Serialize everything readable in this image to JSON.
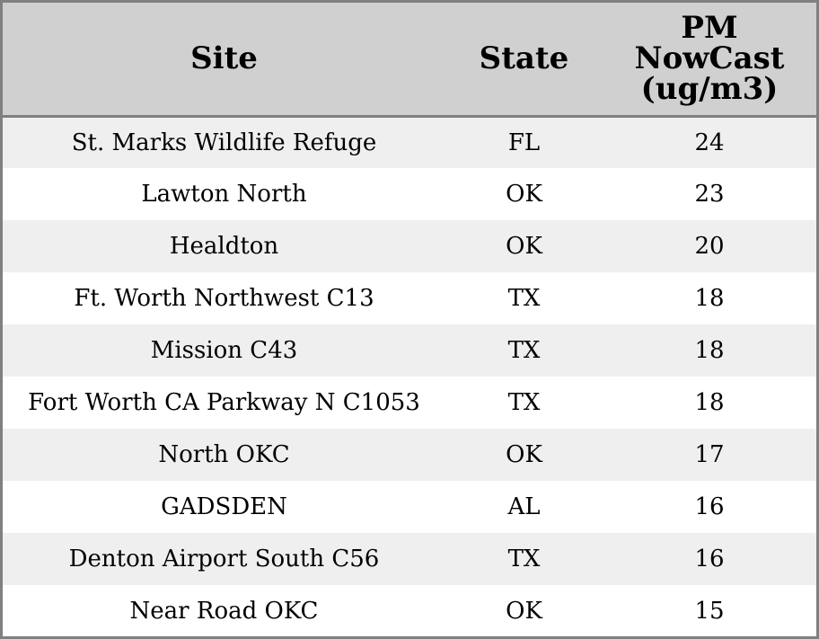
{
  "chart_data": {
    "type": "table",
    "columns": [
      "Site",
      "State",
      "PM NowCast (ug/m3)"
    ],
    "header_lines": {
      "site": [
        "Site"
      ],
      "state": [
        "State"
      ],
      "pm": [
        "PM",
        "NowCast",
        "(ug/m3)"
      ]
    },
    "rows": [
      {
        "site": "St. Marks Wildlife Refuge",
        "state": "FL",
        "pm": "24"
      },
      {
        "site": "Lawton North",
        "state": "OK",
        "pm": "23"
      },
      {
        "site": "Healdton",
        "state": "OK",
        "pm": "20"
      },
      {
        "site": "Ft. Worth Northwest C13",
        "state": "TX",
        "pm": "18"
      },
      {
        "site": "Mission C43",
        "state": "TX",
        "pm": "18"
      },
      {
        "site": "Fort Worth CA Parkway N C1053",
        "state": "TX",
        "pm": "18"
      },
      {
        "site": "North OKC",
        "state": "OK",
        "pm": "17"
      },
      {
        "site": "GADSDEN",
        "state": "AL",
        "pm": "16"
      },
      {
        "site": "Denton Airport South C56",
        "state": "TX",
        "pm": "16"
      },
      {
        "site": "Near Road OKC",
        "state": "OK",
        "pm": "15"
      }
    ]
  },
  "colors": {
    "header_bg": "#d0d0d0",
    "row_odd_bg": "#efefef",
    "row_even_bg": "#ffffff",
    "border": "#808080",
    "text": "#000000"
  }
}
